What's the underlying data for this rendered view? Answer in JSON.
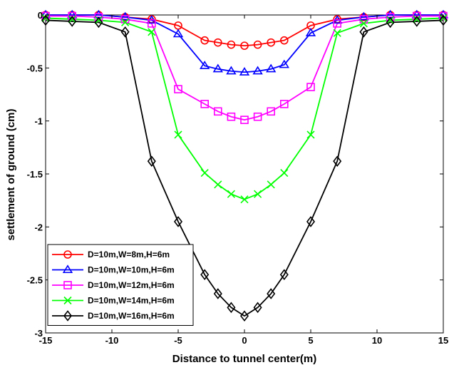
{
  "chart_data": {
    "type": "line",
    "title": "",
    "xlabel": "Distance to tunnel center(m)",
    "ylabel": "settlement of ground (cm)",
    "xlim": [
      -15,
      15
    ],
    "ylim": [
      -3,
      0
    ],
    "xticks": [
      -15,
      -10,
      -5,
      0,
      5,
      10,
      15
    ],
    "yticks": [
      0,
      -0.5,
      -1,
      -1.5,
      -2,
      -2.5,
      -3
    ],
    "grid": false,
    "legend_position": "bottom-left",
    "x": [
      -15,
      -13,
      -11,
      -9,
      -7,
      -5,
      -3,
      -2,
      -1,
      0,
      1,
      2,
      3,
      5,
      7,
      9,
      11,
      13,
      15
    ],
    "series": [
      {
        "name": "D=10m,W=8m,H=6m",
        "color": "#ff0000",
        "marker": "circle",
        "values": [
          0,
          0,
          0,
          -0.02,
          -0.04,
          -0.1,
          -0.24,
          -0.26,
          -0.28,
          -0.29,
          -0.28,
          -0.26,
          -0.24,
          -0.1,
          -0.04,
          -0.02,
          0,
          0,
          0
        ]
      },
      {
        "name": "D=10m,W=10m,H=6m",
        "color": "#0000ff",
        "marker": "triangle",
        "values": [
          0,
          0,
          0,
          -0.02,
          -0.05,
          -0.18,
          -0.48,
          -0.51,
          -0.53,
          -0.54,
          -0.53,
          -0.51,
          -0.47,
          -0.17,
          -0.05,
          -0.02,
          0,
          0,
          0
        ]
      },
      {
        "name": "D=10m,W=12m,H=6m",
        "color": "#ff00ff",
        "marker": "square",
        "values": [
          -0.01,
          -0.01,
          -0.02,
          -0.04,
          -0.08,
          -0.7,
          -0.84,
          -0.91,
          -0.96,
          -0.99,
          -0.96,
          -0.91,
          -0.84,
          -0.68,
          -0.08,
          -0.04,
          -0.02,
          -0.01,
          -0.01
        ]
      },
      {
        "name": "D=10m,W=14m,H=6m",
        "color": "#00ff00",
        "marker": "x",
        "values": [
          -0.03,
          -0.04,
          -0.05,
          -0.07,
          -0.16,
          -1.13,
          -1.49,
          -1.6,
          -1.69,
          -1.74,
          -1.69,
          -1.6,
          -1.49,
          -1.13,
          -0.17,
          -0.08,
          -0.05,
          -0.04,
          -0.03
        ]
      },
      {
        "name": "D=10m,W=16m,H=6m",
        "color": "#000000",
        "marker": "diamond",
        "values": [
          -0.05,
          -0.06,
          -0.07,
          -0.16,
          -1.38,
          -1.95,
          -2.45,
          -2.63,
          -2.76,
          -2.84,
          -2.76,
          -2.63,
          -2.45,
          -1.95,
          -1.38,
          -0.16,
          -0.07,
          -0.06,
          -0.05
        ]
      }
    ]
  }
}
